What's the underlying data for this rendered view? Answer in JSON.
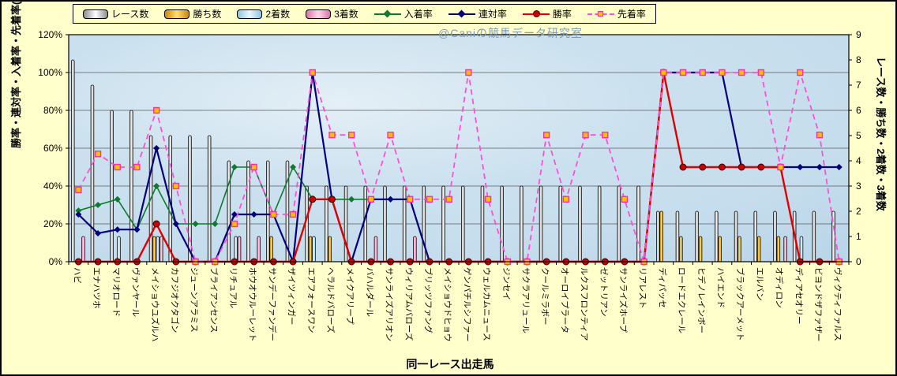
{
  "watermark": "@Caniの競馬データ研究室",
  "x_axis_title": "同一レース出走馬",
  "y_left": {
    "title": "勝率・連対率・入着率・先着率(%)",
    "ticks": [
      "0%",
      "20%",
      "40%",
      "60%",
      "80%",
      "100%",
      "120%"
    ],
    "range": [
      0,
      120
    ]
  },
  "y_right": {
    "title": "レース数・勝ち数・2着数・3着数",
    "ticks": [
      "0",
      "1",
      "2",
      "3",
      "4",
      "5",
      "6",
      "7",
      "8",
      "9"
    ],
    "range": [
      0,
      9
    ]
  },
  "colors": {
    "background": "#FFFFCC",
    "plot_fill": "#C3DCEC",
    "grid": "#5A5A5A",
    "axis": "#000000"
  },
  "legend": {
    "items": [
      {
        "label": "レース数",
        "type": "bar",
        "key": "races"
      },
      {
        "label": "勝ち数",
        "type": "bar",
        "key": "wins"
      },
      {
        "label": "2着数",
        "type": "bar",
        "key": "seconds"
      },
      {
        "label": "3着数",
        "type": "bar",
        "key": "thirds"
      },
      {
        "label": "入着率",
        "type": "line",
        "key": "place_rate"
      },
      {
        "label": "連対率",
        "type": "line",
        "key": "quinella_rate"
      },
      {
        "label": "勝率",
        "type": "line",
        "key": "win_rate"
      },
      {
        "label": "先着率",
        "type": "line",
        "key": "first_rate"
      }
    ]
  },
  "chart_data": {
    "type": "bar",
    "subtype": "combo-bar-line",
    "grid": true,
    "legend_position": "top",
    "categories": [
      "ハビ",
      "エナハツホ",
      "マリオロード",
      "ヴァンヤール",
      "メイショウユズルハ",
      "カフジオクタゴン",
      "ジューンアラミス",
      "ブライアンセンス",
      "リチュアル",
      "ホウオウルーレット",
      "サンデーファンデー",
      "ザイツィンガー",
      "エアフォースワン",
      "ヘラルドバローズ",
      "メイクアリープ",
      "バハルダール",
      "サンライズアリオン",
      "ウィリアムバローズ",
      "ブリッツファング",
      "メイショウドヒョウ",
      "ゲンパチルシファー",
      "ウェルカムニュース",
      "ジンセイ",
      "サクラアリュール",
      "クールミラボー",
      "オーロイプラータ",
      "ルクスフロンティア",
      "ゼットリアン",
      "サンライズホープ",
      "リアレスト",
      "ディパッセ",
      "ロードエクレール",
      "ヒデノレインボー",
      "ハイエンド",
      "ブラックアーメット",
      "エルバン",
      "オディロン",
      "ディアセオリー",
      "ビヨンドザファザー",
      "ヴィクティファルス"
    ],
    "y_left_range": [
      0,
      120
    ],
    "y_right_range": [
      0,
      9
    ],
    "bar_series": [
      {
        "name": "レース数",
        "axis": "right",
        "light": "#FFFFFF",
        "dark": "#8C8C8C",
        "values": [
          8,
          7,
          6,
          6,
          5,
          5,
          5,
          5,
          4,
          4,
          4,
          4,
          3,
          3,
          3,
          3,
          3,
          3,
          3,
          3,
          3,
          3,
          3,
          3,
          3,
          3,
          3,
          3,
          3,
          3,
          2,
          2,
          2,
          2,
          2,
          2,
          2,
          2,
          2,
          2
        ]
      },
      {
        "name": "勝ち数",
        "axis": "right",
        "light": "#FFDE6B",
        "dark": "#C98B00",
        "values": [
          0,
          0,
          0,
          0,
          1,
          0,
          0,
          0,
          0,
          0,
          1,
          0,
          1,
          1,
          0,
          0,
          0,
          0,
          0,
          0,
          0,
          0,
          0,
          0,
          0,
          0,
          0,
          0,
          0,
          0,
          2,
          1,
          1,
          1,
          1,
          1,
          1,
          0,
          0,
          0
        ]
      },
      {
        "name": "2着数",
        "axis": "right",
        "light": "#E8F7FF",
        "dark": "#8FC3E0",
        "values": [
          0,
          0,
          1,
          0,
          1,
          0,
          0,
          0,
          1,
          0,
          0,
          0,
          1,
          0,
          0,
          0,
          0,
          0,
          0,
          0,
          0,
          0,
          0,
          0,
          0,
          0,
          0,
          0,
          0,
          0,
          0,
          0,
          0,
          0,
          0,
          0,
          0,
          1,
          0,
          0
        ]
      },
      {
        "name": "3着数",
        "axis": "right",
        "light": "#FFD6EA",
        "dark": "#D876A8",
        "values": [
          1,
          0,
          0,
          0,
          1,
          0,
          0,
          0,
          1,
          1,
          0,
          0,
          0,
          0,
          0,
          1,
          0,
          1,
          0,
          0,
          0,
          0,
          0,
          0,
          0,
          0,
          0,
          0,
          0,
          0,
          0,
          0,
          0,
          0,
          0,
          0,
          1,
          0,
          0,
          0
        ]
      }
    ],
    "line_series": [
      {
        "name": "入着率",
        "axis": "left",
        "color": "#0E7A2E",
        "marker": "diamond",
        "marker_fill": "#0E7A2E",
        "dashed": false,
        "width": 1.6,
        "values": [
          27,
          30,
          33,
          17,
          40,
          20,
          20,
          20,
          50,
          50,
          25,
          50,
          33,
          33,
          33,
          33,
          33,
          33,
          0,
          0,
          0,
          0,
          0,
          0,
          0,
          0,
          0,
          0,
          0,
          0,
          100,
          50,
          50,
          50,
          50,
          50,
          50,
          50,
          50,
          50
        ]
      },
      {
        "name": "連対率",
        "axis": "left",
        "color": "#000080",
        "marker": "diamond",
        "marker_fill": "#000080",
        "dashed": false,
        "width": 2.2,
        "values": [
          25,
          15,
          17,
          17,
          60,
          20,
          0,
          0,
          25,
          25,
          25,
          0,
          100,
          33,
          0,
          33,
          33,
          33,
          0,
          0,
          0,
          0,
          0,
          0,
          0,
          0,
          0,
          0,
          0,
          0,
          100,
          100,
          100,
          100,
          50,
          50,
          50,
          50,
          50,
          50
        ]
      },
      {
        "name": "勝率",
        "axis": "left",
        "color": "#E00000",
        "marker": "circle",
        "marker_fill": "#C80000",
        "dashed": false,
        "width": 2.4,
        "values": [
          0,
          0,
          0,
          0,
          20,
          0,
          0,
          0,
          0,
          0,
          0,
          0,
          33,
          33,
          0,
          0,
          0,
          0,
          0,
          0,
          0,
          0,
          0,
          0,
          0,
          0,
          0,
          0,
          0,
          0,
          100,
          50,
          50,
          50,
          50,
          50,
          50,
          0,
          0,
          0
        ]
      },
      {
        "name": "先着率",
        "axis": "left",
        "color": "#FF4FD8",
        "marker": "square",
        "marker_fill": "#FFC000",
        "marker_stroke": "#FF2DA8",
        "dashed": true,
        "width": 1.8,
        "values": [
          38,
          57,
          50,
          50,
          80,
          40,
          0,
          0,
          20,
          50,
          25,
          25,
          100,
          67,
          67,
          33,
          67,
          33,
          33,
          33,
          100,
          33,
          0,
          0,
          67,
          33,
          67,
          67,
          33,
          0,
          100,
          100,
          100,
          100,
          100,
          100,
          50,
          100,
          67,
          0
        ]
      }
    ]
  }
}
